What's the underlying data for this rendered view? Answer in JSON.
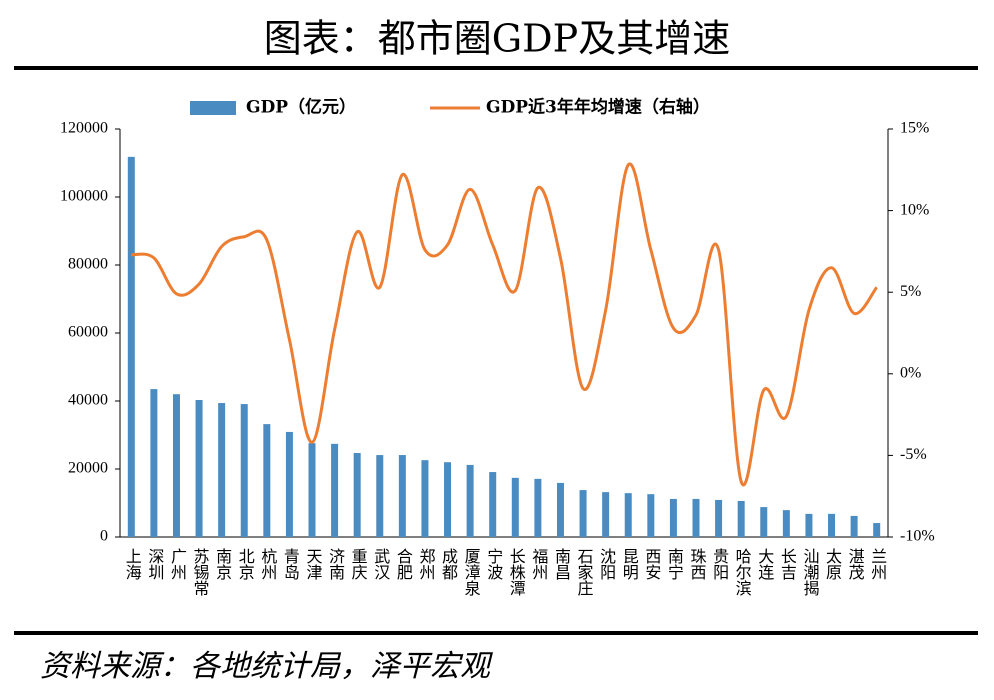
{
  "chart_data": {
    "type": "bar_line",
    "title": "图表：都市圈GDP及其增速",
    "source": "资料来源：各地统计局，泽平宏观",
    "categories": [
      "上海",
      "深圳",
      "广州",
      "苏锡常",
      "南京",
      "北京",
      "杭州",
      "青岛",
      "天津",
      "济南",
      "重庆",
      "武汉",
      "合肥",
      "郑州",
      "成都",
      "厦漳泉",
      "宁波",
      "长株潭",
      "福州",
      "南昌",
      "石家庄",
      "沈阳",
      "昆明",
      "西安",
      "南宁",
      "珠西",
      "贵阳",
      "哈尔滨",
      "大连",
      "长吉",
      "汕潮揭",
      "太原",
      "湛茂",
      "兰州"
    ],
    "series": [
      {
        "name": "GDP（亿元）",
        "color": "#4a8cc2",
        "values": [
          111800,
          43500,
          42000,
          40300,
          39400,
          39100,
          33200,
          30900,
          27600,
          27400,
          24700,
          24100,
          24100,
          22600,
          22000,
          21200,
          19100,
          17400,
          17100,
          15900,
          13800,
          13200,
          12900,
          12600,
          11200,
          11200,
          10900,
          10600,
          8800,
          7900,
          6800,
          6800,
          6200,
          4100
        ]
      },
      {
        "name": "GDP近3年年均增速（右轴）",
        "color": "#ed7d31",
        "axis": "y2",
        "values": [
          7.3,
          7.1,
          4.9,
          5.5,
          7.8,
          8.4,
          8.2,
          2.1,
          -4.2,
          2.7,
          8.7,
          5.3,
          12.2,
          7.6,
          7.9,
          11.3,
          7.9,
          5.1,
          11.4,
          7.1,
          -0.9,
          3.9,
          12.8,
          7.6,
          2.8,
          3.6,
          7.6,
          -6.6,
          -1.0,
          -2.6,
          3.9,
          6.5,
          3.7,
          5.3
        ]
      }
    ],
    "ylim": [
      0,
      120000
    ],
    "yticks": [
      0,
      20000,
      40000,
      60000,
      80000,
      100000,
      120000
    ],
    "y2lim": [
      -10,
      15
    ],
    "y2ticks": [
      {
        "value": -10,
        "label": "-10%"
      },
      {
        "value": -5,
        "label": "-5%"
      },
      {
        "value": 0,
        "label": "0%"
      },
      {
        "value": 5,
        "label": "5%"
      },
      {
        "value": 10,
        "label": "10%"
      },
      {
        "value": 15,
        "label": "15%"
      }
    ],
    "grid": false,
    "legend": "top"
  }
}
